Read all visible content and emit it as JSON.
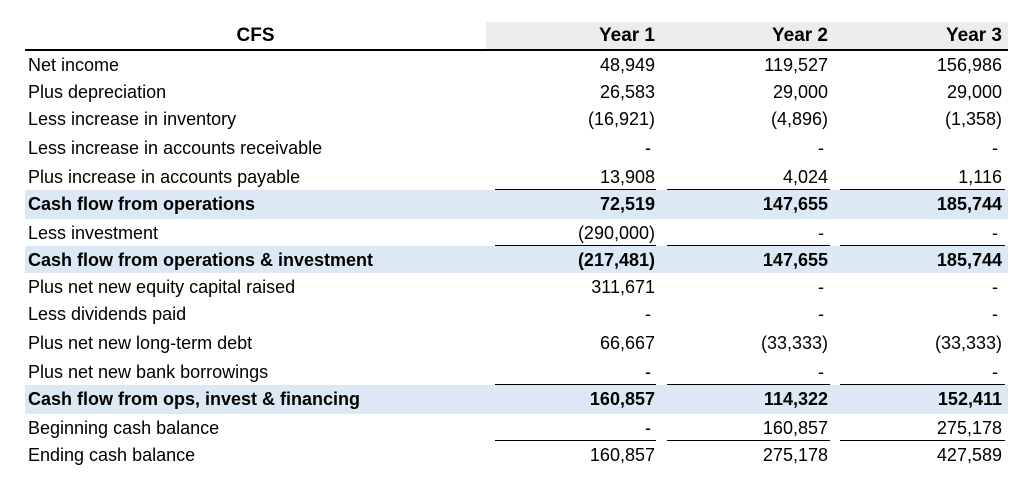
{
  "table": {
    "title": "CFS",
    "columns": [
      "Year 1",
      "Year 2",
      "Year 3"
    ],
    "rows": [
      {
        "label": "Net income",
        "values": [
          "48,949",
          "119,527",
          "156,986"
        ],
        "total": false
      },
      {
        "label": "Plus depreciation",
        "values": [
          "26,583",
          "29,000",
          "29,000"
        ],
        "total": false
      },
      {
        "label": "Less increase in inventory",
        "values": [
          "(16,921)",
          "(4,896)",
          "(1,358)"
        ],
        "total": false
      },
      {
        "label": "Less increase in accounts receivable",
        "values": [
          "-",
          "-",
          "-"
        ],
        "total": false
      },
      {
        "label": "Plus increase in accounts payable",
        "values": [
          "13,908",
          "4,024",
          "1,116"
        ],
        "total": false
      },
      {
        "label": "Cash flow from operations",
        "values": [
          "72,519",
          "147,655",
          "185,744"
        ],
        "total": true
      },
      {
        "label": "Less investment",
        "values": [
          "(290,000)",
          "-",
          "-"
        ],
        "total": false
      },
      {
        "label": "Cash flow from operations & investment",
        "values": [
          "(217,481)",
          "147,655",
          "185,744"
        ],
        "total": true
      },
      {
        "label": "Plus net new equity capital raised",
        "values": [
          "311,671",
          "-",
          "-"
        ],
        "total": false
      },
      {
        "label": "Less dividends paid",
        "values": [
          "-",
          "-",
          "-"
        ],
        "total": false
      },
      {
        "label": "Plus net new long-term debt",
        "values": [
          "66,667",
          "(33,333)",
          "(33,333)"
        ],
        "total": false
      },
      {
        "label": "Plus net new bank borrowings",
        "values": [
          "-",
          "-",
          "-"
        ],
        "total": false
      },
      {
        "label": "Cash flow from ops, invest & financing",
        "values": [
          "160,857",
          "114,322",
          "152,411"
        ],
        "total": true
      },
      {
        "label": "Beginning cash balance",
        "values": [
          "-",
          "160,857",
          "275,178"
        ],
        "total": false
      },
      {
        "label": "Ending cash balance",
        "values": [
          "160,857",
          "275,178",
          "427,589"
        ],
        "total": false
      }
    ]
  }
}
